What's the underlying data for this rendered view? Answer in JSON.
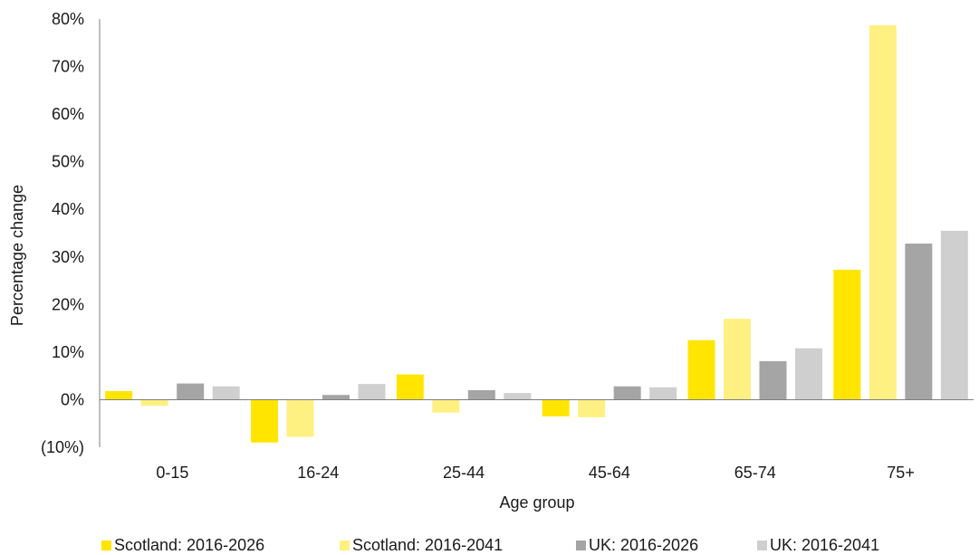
{
  "chart_data": {
    "type": "bar",
    "title": "",
    "xlabel": "Age group",
    "ylabel": "Percentage change",
    "categories": [
      "0-15",
      "16-24",
      "25-44",
      "45-64",
      "65-74",
      "75+"
    ],
    "ylim": [
      -10,
      80
    ],
    "yticks": [
      -10,
      0,
      10,
      20,
      30,
      40,
      50,
      60,
      70,
      80
    ],
    "ytick_labels": [
      "(10%)",
      "0%",
      "10%",
      "20%",
      "30%",
      "40%",
      "50%",
      "60%",
      "70%",
      "80%"
    ],
    "grid": false,
    "legend_position": "bottom",
    "series": [
      {
        "name": "Scotland: 2016-2026",
        "color": "#FFE500",
        "values": [
          1.8,
          -9.0,
          5.3,
          -3.5,
          12.5,
          27.3
        ]
      },
      {
        "name": "Scotland: 2016-2041",
        "color": "#FFF082",
        "values": [
          -1.3,
          -7.8,
          -2.7,
          -3.7,
          17.0,
          78.7
        ]
      },
      {
        "name": "UK: 2016-2026",
        "color": "#A5A5A5",
        "values": [
          3.4,
          1.0,
          2.0,
          2.8,
          8.1,
          32.8
        ]
      },
      {
        "name": "UK: 2016-2041",
        "color": "#CFCFCF",
        "values": [
          2.8,
          3.3,
          1.4,
          2.6,
          10.8,
          35.5
        ]
      }
    ]
  }
}
